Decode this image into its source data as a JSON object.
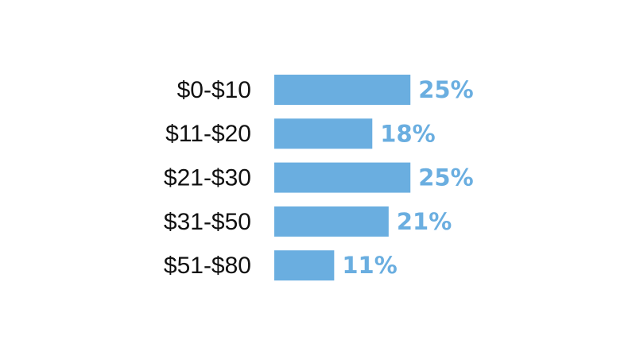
{
  "chart_data": {
    "type": "bar",
    "orientation": "horizontal",
    "categories": [
      "$0-$10",
      "$11-$20",
      "$21-$30",
      "$31-$50",
      "$51-$80"
    ],
    "values": [
      25,
      18,
      25,
      21,
      11
    ],
    "value_labels": [
      "25%",
      "18%",
      "25%",
      "21%",
      "11%"
    ],
    "color": "#6aaee0"
  }
}
